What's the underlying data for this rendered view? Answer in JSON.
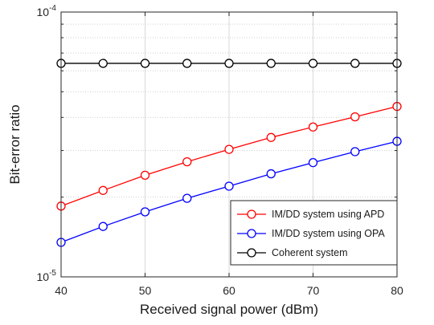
{
  "chart_data": {
    "type": "line",
    "title": "",
    "xlabel": "Received signal power (dBm)",
    "ylabel": "Bit-error ratio",
    "x": [
      40,
      45,
      50,
      55,
      60,
      65,
      70,
      75,
      80
    ],
    "xlim": [
      40,
      80
    ],
    "ylim": [
      1e-05,
      0.0001
    ],
    "yscale": "log",
    "x_ticks": [
      "40",
      "50",
      "60",
      "70",
      "80"
    ],
    "y_ticks": [
      {
        "base": "10",
        "exp": "-4"
      },
      {
        "base": "10",
        "exp": "-5"
      }
    ],
    "grid": true,
    "legend_position": "bottom-right",
    "series": [
      {
        "name": "IM/DD system using APD",
        "color": "#ff0000",
        "marker": "circle",
        "values": [
          1.85e-05,
          2.12e-05,
          2.42e-05,
          2.72e-05,
          3.03e-05,
          3.36e-05,
          3.68e-05,
          4.02e-05,
          4.4e-05
        ]
      },
      {
        "name": "IM/DD system using OPA",
        "color": "#0000ff",
        "marker": "circle",
        "values": [
          1.35e-05,
          1.55e-05,
          1.76e-05,
          1.98e-05,
          2.2e-05,
          2.45e-05,
          2.7e-05,
          2.97e-05,
          3.25e-05
        ]
      },
      {
        "name": "Coherent system",
        "color": "#000000",
        "marker": "circle",
        "values": [
          6.4e-05,
          6.4e-05,
          6.4e-05,
          6.4e-05,
          6.4e-05,
          6.4e-05,
          6.4e-05,
          6.4e-05,
          6.4e-05
        ]
      }
    ]
  }
}
